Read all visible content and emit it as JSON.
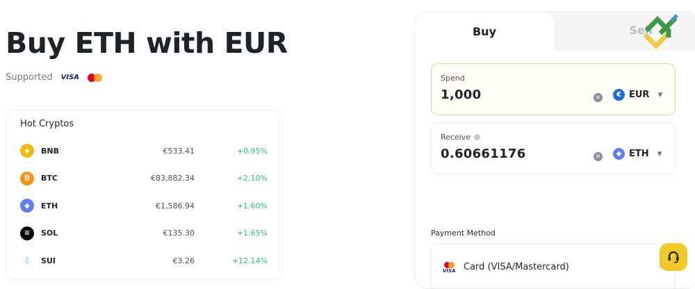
{
  "page": {
    "title": "Buy ETH with EUR",
    "supported_label": "Supported",
    "supported_methods": [
      "VISA",
      "Mastercard"
    ]
  },
  "hot_cryptos": {
    "title": "Hot Cryptos",
    "items": [
      {
        "symbol": "BNB",
        "price": "€533.41",
        "change": "+0.95%",
        "icon": "bnb-icon",
        "color": "#f0b90b"
      },
      {
        "symbol": "BTC",
        "price": "€83,882.34",
        "change": "+2.10%",
        "icon": "btc-icon",
        "color": "#f7931a"
      },
      {
        "symbol": "ETH",
        "price": "€1,586.94",
        "change": "+1.60%",
        "icon": "eth-icon",
        "color": "#627eea"
      },
      {
        "symbol": "SOL",
        "price": "€135.30",
        "change": "+1.65%",
        "icon": "sol-icon",
        "color": "#000000"
      },
      {
        "symbol": "SUI",
        "price": "€3.26",
        "change": "+12.14%",
        "icon": "sui-icon",
        "color": "#4da2ff"
      }
    ]
  },
  "trade": {
    "tabs": [
      {
        "label": "Buy",
        "active": true
      },
      {
        "label": "Sell",
        "active": false
      }
    ],
    "spend": {
      "label": "Spend",
      "value": "1,000",
      "currency": "EUR",
      "currency_symbol": "€"
    },
    "receive": {
      "label": "Receive",
      "value": "0.60661176",
      "currency": "ETH"
    },
    "payment_method_label": "Payment Method",
    "payment_method": {
      "label": "Card (VISA/Mastercard)",
      "cards_text": "VISA"
    }
  },
  "colors": {
    "accent": "#f0c929",
    "positive": "#2ebd85"
  }
}
